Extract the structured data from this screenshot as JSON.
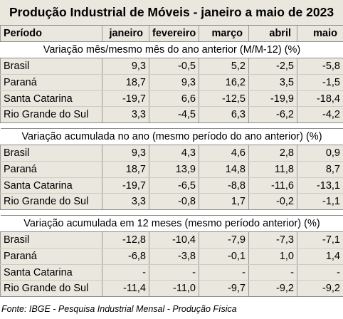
{
  "title": "Produção Industrial de Móveis - janeiro a maio de 2023",
  "columns": [
    "Período",
    "janeiro",
    "fevereiro",
    "março",
    "abril",
    "maio"
  ],
  "sections": [
    {
      "label": "Variação mês/mesmo mês do ano anterior (M/M-12) (%)",
      "rows": [
        {
          "name": "Brasil",
          "values": [
            "9,3",
            "-0,5",
            "5,2",
            "-2,5",
            "-5,8"
          ]
        },
        {
          "name": "Paraná",
          "values": [
            "18,7",
            "9,3",
            "16,2",
            "3,5",
            "-1,5"
          ]
        },
        {
          "name": "Santa Catarina",
          "values": [
            "-19,7",
            "6,6",
            "-12,5",
            "-19,9",
            "-18,4"
          ]
        },
        {
          "name": "Rio Grande do Sul",
          "values": [
            "3,3",
            "-4,5",
            "6,3",
            "-6,2",
            "-4,2"
          ]
        }
      ]
    },
    {
      "label": "Variação acumulada no ano (mesmo período do ano anterior) (%)",
      "rows": [
        {
          "name": "Brasil",
          "values": [
            "9,3",
            "4,3",
            "4,6",
            "2,8",
            "0,9"
          ]
        },
        {
          "name": "Paraná",
          "values": [
            "18,7",
            "13,9",
            "14,8",
            "11,8",
            "8,7"
          ]
        },
        {
          "name": "Santa Catarina",
          "values": [
            "-19,7",
            "-6,5",
            "-8,8",
            "-11,6",
            "-13,1"
          ]
        },
        {
          "name": "Rio Grande do Sul",
          "values": [
            "3,3",
            "-0,8",
            "1,7",
            "-0,2",
            "-1,1"
          ]
        }
      ]
    },
    {
      "label": "Variação acumulada em 12 meses (mesmo período anterior) (%)",
      "rows": [
        {
          "name": "Brasil",
          "values": [
            "-12,8",
            "-10,4",
            "-7,9",
            "-7,3",
            "-7,1"
          ]
        },
        {
          "name": "Paraná",
          "values": [
            "-6,8",
            "-3,8",
            "-0,1",
            "1,0",
            "1,4"
          ]
        },
        {
          "name": "Santa Catarina",
          "values": [
            "-",
            "-",
            "-",
            "-",
            "-"
          ]
        },
        {
          "name": "Rio Grande do Sul",
          "values": [
            "-11,4",
            "-11,0",
            "-9,7",
            "-9,2",
            "-9,2"
          ]
        }
      ]
    }
  ],
  "footer": "Fonte: IBGE - Pesquisa Industrial Mensal - Produção Física"
}
